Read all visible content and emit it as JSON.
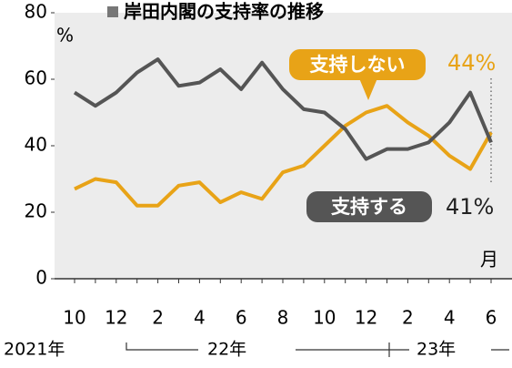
{
  "chart_data": {
    "type": "line",
    "title": "岸田内閣の支持率の推移",
    "y_unit": "%",
    "x_unit": "月",
    "categories": [
      "10",
      null,
      "12",
      null,
      "2",
      null,
      "4",
      null,
      "6",
      null,
      "8",
      null,
      "10",
      null,
      "12",
      null,
      "2",
      null,
      "4",
      null,
      "6"
    ],
    "years": [
      "2021年",
      "22年",
      "23年"
    ],
    "series": [
      {
        "name": "支持しない",
        "color": "#e8a317",
        "values": [
          27,
          30,
          29,
          22,
          22,
          28,
          29,
          23,
          26,
          24,
          32,
          34,
          40,
          46,
          50,
          52,
          47,
          43,
          37,
          33,
          44
        ],
        "value_labels": [
          null,
          null,
          null,
          null,
          null,
          null,
          null,
          null,
          null,
          null,
          null,
          null,
          null,
          null,
          null,
          null,
          null,
          null,
          null,
          null,
          "44%"
        ]
      },
      {
        "name": "支持する",
        "color": "#555555",
        "values": [
          56,
          52,
          56,
          62,
          66,
          58,
          59,
          63,
          57,
          65,
          57,
          51,
          50,
          45,
          36,
          39,
          39,
          41,
          47,
          56,
          41
        ],
        "value_labels": [
          null,
          null,
          null,
          null,
          null,
          null,
          null,
          null,
          null,
          null,
          null,
          null,
          null,
          null,
          null,
          null,
          null,
          null,
          null,
          null,
          "41%"
        ]
      }
    ],
    "ylim": [
      0,
      80
    ],
    "yticks": [
      0,
      20,
      40,
      60,
      80
    ],
    "grid": false
  }
}
